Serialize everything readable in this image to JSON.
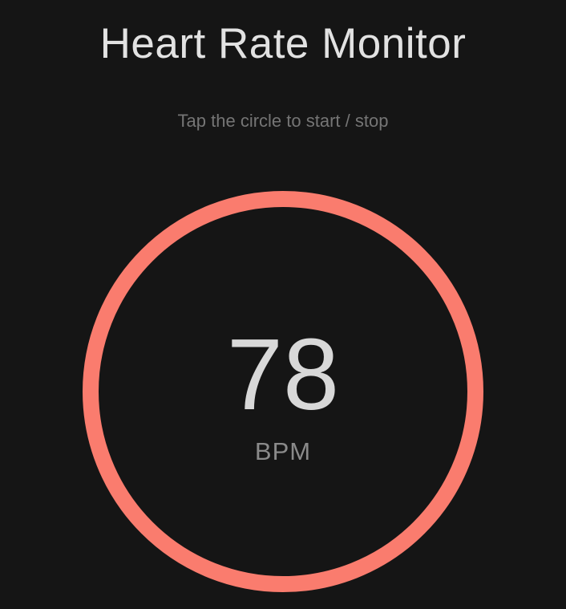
{
  "app": {
    "title": "Heart Rate Monitor",
    "instruction": "Tap the circle to start / stop"
  },
  "monitor": {
    "bpm_value": "78",
    "bpm_unit": "BPM"
  },
  "colors": {
    "background": "#151515",
    "ring": "#FA7C6E",
    "title_text": "#E2E2E2",
    "instruction_text": "#757575",
    "value_text": "#D8D8D8",
    "unit_text": "#8A8A8A"
  }
}
